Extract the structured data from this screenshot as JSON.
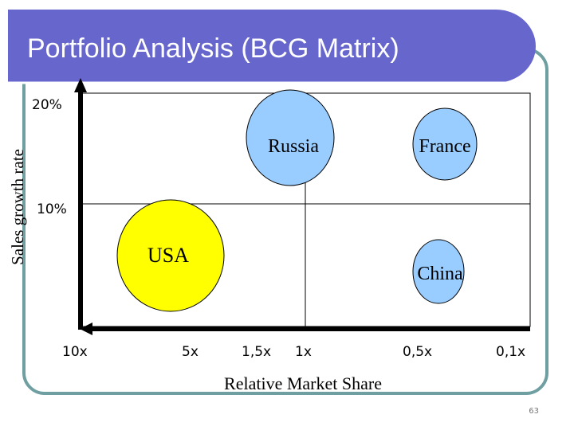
{
  "title": "Portfolio Analysis (BCG Matrix)",
  "y_axis": {
    "label": "Sales growth rate",
    "ticks": [
      "20%",
      "10%"
    ]
  },
  "x_axis": {
    "label": "Relative Market Share",
    "ticks": [
      "10x",
      "5x",
      "1,5x",
      "1x",
      "0,5x",
      "0,1x"
    ]
  },
  "bubbles": [
    {
      "label": "Russia"
    },
    {
      "label": "France"
    },
    {
      "label": "USA"
    },
    {
      "label": "China"
    }
  ],
  "page_number": "63"
}
